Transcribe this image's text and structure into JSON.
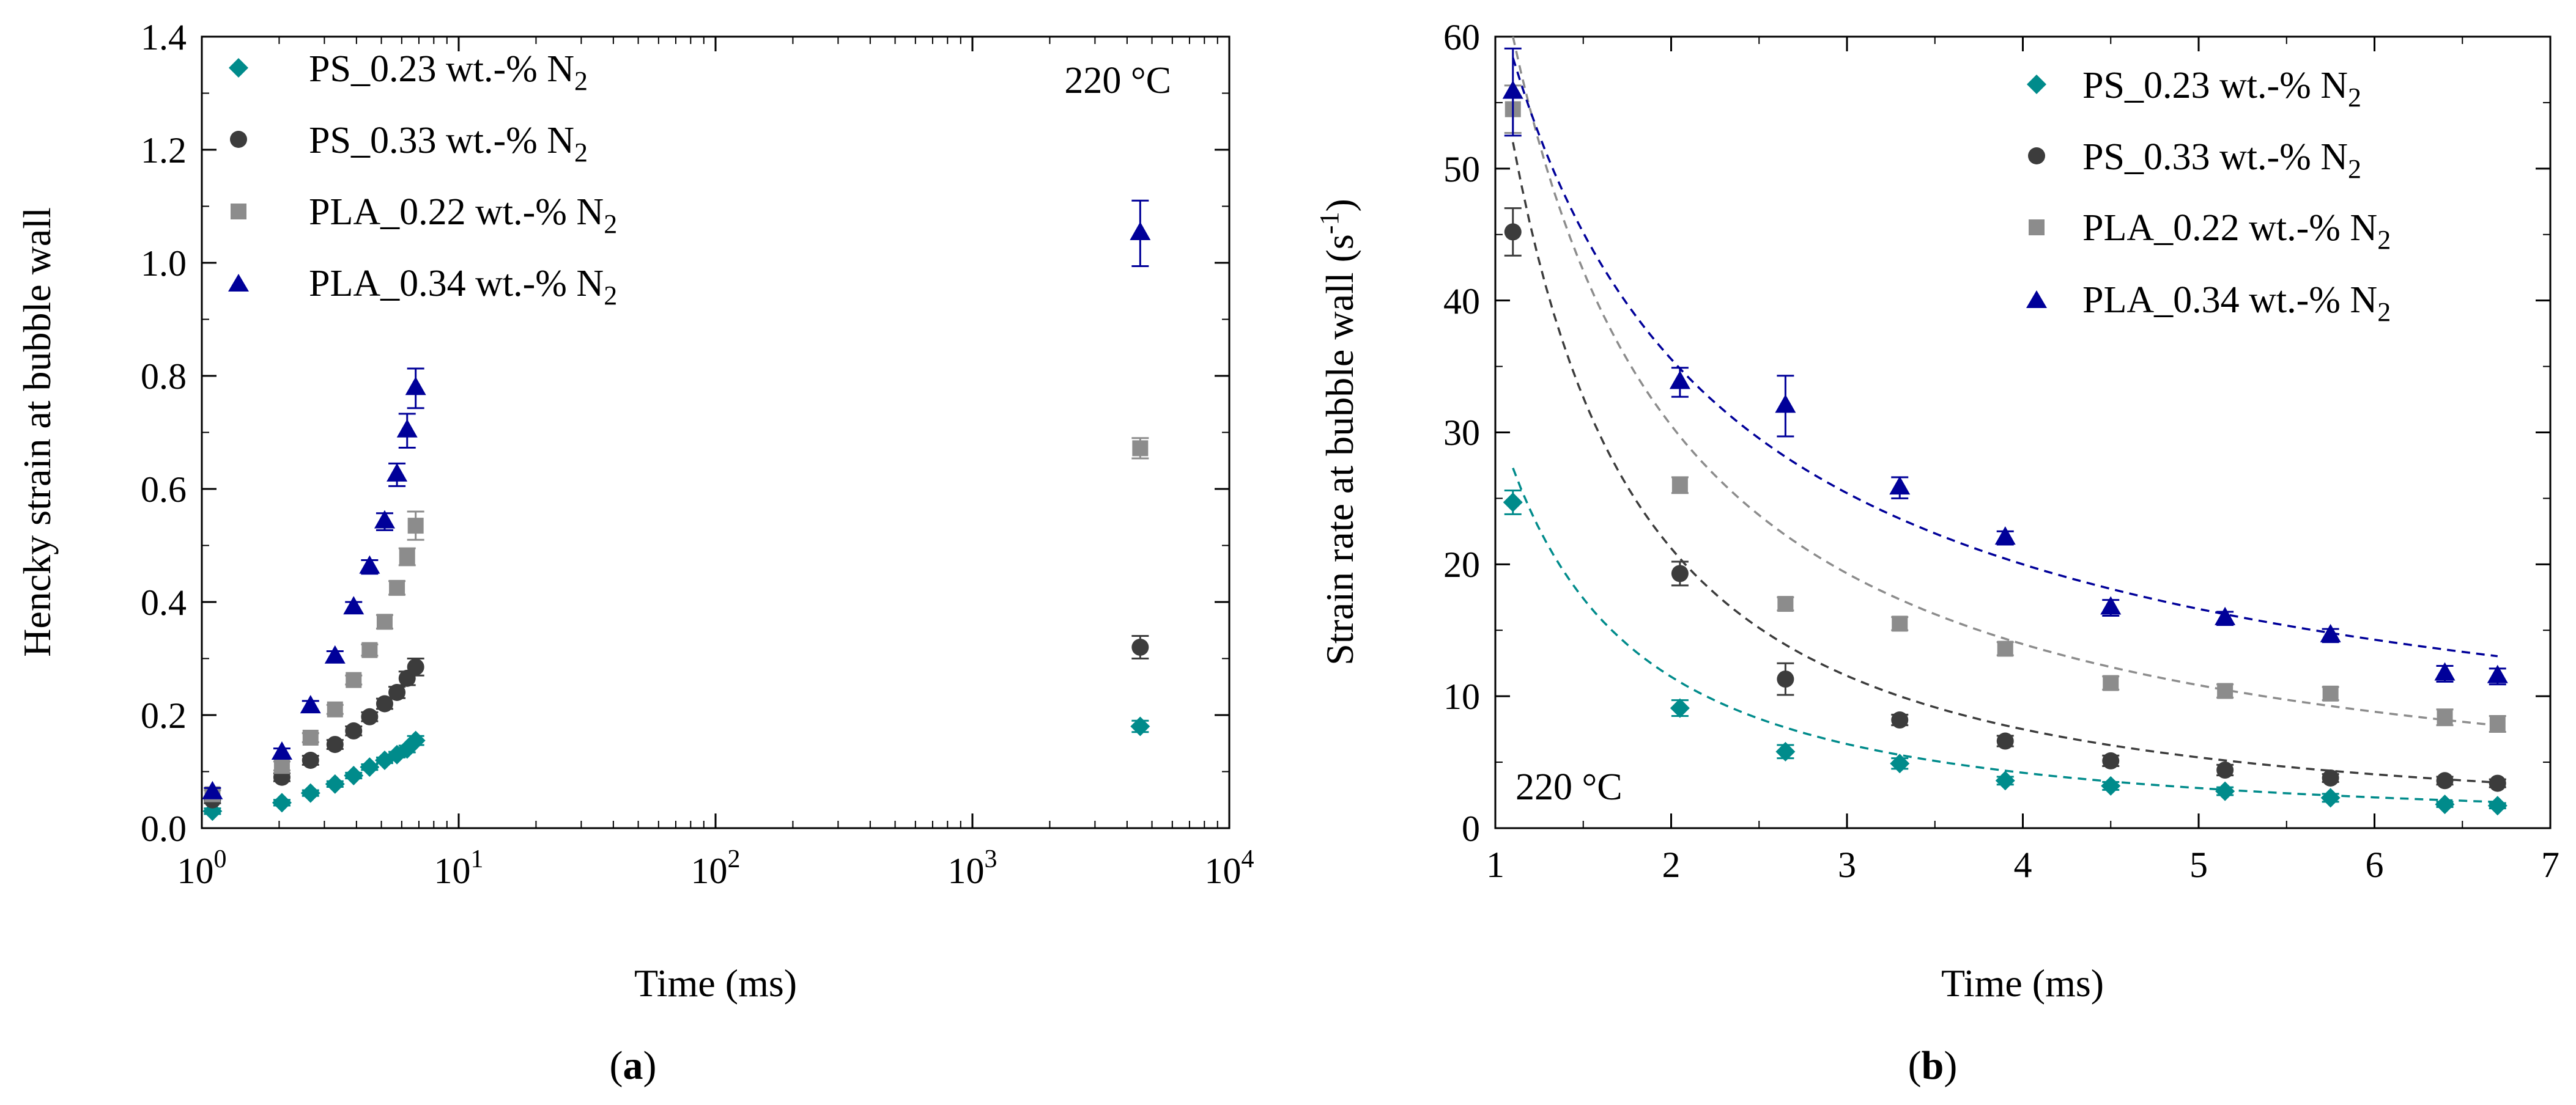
{
  "series_meta": [
    {
      "id": "ps023",
      "label": "PS_0.23 wt.-% N",
      "sub": "2",
      "color": "#008B8B",
      "marker": "diamond"
    },
    {
      "id": "ps033",
      "label": "PS_0.33 wt.-% N",
      "sub": "2",
      "color": "#3C3C3C",
      "marker": "circle"
    },
    {
      "id": "pla022",
      "label": "PLA_0.22 wt.-% N",
      "sub": "2",
      "color": "#8C8C8C",
      "marker": "square"
    },
    {
      "id": "pla034",
      "label": "PLA_0.34 wt.-% N",
      "sub": "2",
      "color": "#000099",
      "marker": "triangle"
    }
  ],
  "chart_data": [
    {
      "type": "scatter",
      "panel_label": "a",
      "xscale": "log",
      "xlim": [
        1,
        10000
      ],
      "ylim": [
        0,
        1.4
      ],
      "xlabel": "Time (ms)",
      "ylabel": "Hencky strain at bubble wall",
      "yticks": [
        "0.0",
        "0.2",
        "0.4",
        "0.6",
        "0.8",
        "1.0",
        "1.2",
        "1.4"
      ],
      "xticks": [
        {
          "base": "10",
          "exp": "0"
        },
        {
          "base": "10",
          "exp": "1"
        },
        {
          "base": "10",
          "exp": "2"
        },
        {
          "base": "10",
          "exp": "3"
        },
        {
          "base": "10",
          "exp": "4"
        }
      ],
      "annotation": "220 °C",
      "legend_position": "top-left",
      "series": [
        {
          "name": "PS_0.23 wt.-% N2",
          "x": [
            1.1,
            2.05,
            2.65,
            3.3,
            3.9,
            4.5,
            5.15,
            5.75,
            6.3,
            6.8,
            4500
          ],
          "y": [
            0.03,
            0.045,
            0.062,
            0.078,
            0.093,
            0.108,
            0.12,
            0.13,
            0.14,
            0.155,
            0.18
          ],
          "err": [
            0.005,
            0.005,
            0.005,
            0.005,
            0.005,
            0.005,
            0.005,
            0.005,
            0.006,
            0.008,
            0.01
          ]
        },
        {
          "name": "PS_0.33 wt.-% N2",
          "x": [
            1.1,
            2.05,
            2.65,
            3.3,
            3.9,
            4.5,
            5.15,
            5.75,
            6.3,
            6.8,
            4500
          ],
          "y": [
            0.05,
            0.09,
            0.12,
            0.148,
            0.172,
            0.197,
            0.22,
            0.24,
            0.265,
            0.285,
            0.32
          ],
          "err": [
            0.006,
            0.007,
            0.008,
            0.008,
            0.008,
            0.008,
            0.009,
            0.01,
            0.012,
            0.015,
            0.02
          ]
        },
        {
          "name": "PLA_0.22 wt.-% N2",
          "x": [
            1.1,
            2.05,
            2.65,
            3.3,
            3.9,
            4.5,
            5.15,
            5.75,
            6.3,
            6.8,
            4500
          ],
          "y": [
            0.06,
            0.11,
            0.16,
            0.21,
            0.262,
            0.315,
            0.365,
            0.425,
            0.48,
            0.535,
            0.672
          ],
          "err": [
            0.007,
            0.008,
            0.008,
            0.008,
            0.008,
            0.01,
            0.012,
            0.012,
            0.015,
            0.025,
            0.018
          ]
        },
        {
          "name": "PLA_0.34 wt.-% N2",
          "x": [
            1.1,
            2.05,
            2.65,
            3.3,
            3.9,
            4.5,
            5.15,
            5.75,
            6.3,
            6.8,
            4500
          ],
          "y": [
            0.063,
            0.133,
            0.215,
            0.303,
            0.39,
            0.462,
            0.542,
            0.625,
            0.703,
            0.778,
            1.052
          ],
          "err": [
            0.008,
            0.008,
            0.01,
            0.01,
            0.01,
            0.012,
            0.015,
            0.02,
            0.03,
            0.035,
            0.058
          ]
        }
      ]
    },
    {
      "type": "scatter",
      "panel_label": "b",
      "xscale": "linear",
      "xlim": [
        1,
        7
      ],
      "ylim": [
        0,
        60
      ],
      "xlabel": "Time (ms)",
      "ylabel": "Strain rate at bubble wall (s",
      "ylabel_sup": "-1",
      "ylabel_end": ")",
      "yticks": [
        "0",
        "10",
        "20",
        "30",
        "40",
        "50",
        "60"
      ],
      "xticks": [
        "1",
        "2",
        "3",
        "4",
        "5",
        "6",
        "7"
      ],
      "annotation": "220 °C",
      "legend_position": "top-right",
      "fit": "dashed power-law decay",
      "series": [
        {
          "name": "PS_0.23 wt.-% N2",
          "x": [
            1.1,
            2.05,
            2.65,
            3.3,
            3.9,
            4.5,
            5.15,
            5.75,
            6.4,
            6.7
          ],
          "y": [
            24.7,
            9.1,
            5.8,
            4.9,
            3.6,
            3.2,
            2.8,
            2.3,
            1.8,
            1.7
          ],
          "err": [
            0.9,
            0.6,
            0.5,
            0.4,
            0.3,
            0.3,
            0.3,
            0.3,
            0.2,
            0.2
          ],
          "fit": {
            "a": 27.3,
            "b": 1.45
          }
        },
        {
          "name": "PS_0.33 wt.-% N2",
          "x": [
            1.1,
            2.05,
            2.65,
            3.3,
            3.9,
            4.5,
            5.15,
            5.75,
            6.4,
            6.7
          ],
          "y": [
            45.2,
            19.3,
            11.3,
            8.2,
            6.6,
            5.1,
            4.4,
            3.8,
            3.6,
            3.4
          ],
          "err": [
            1.8,
            0.9,
            1.2,
            0.4,
            0.4,
            0.4,
            0.4,
            0.3,
            0.3,
            0.3
          ],
          "fit": {
            "a": 52.0,
            "b": 1.5
          }
        },
        {
          "name": "PLA_0.22 wt.-% N2",
          "x": [
            1.1,
            2.05,
            2.65,
            3.3,
            3.9,
            4.5,
            5.15,
            5.75,
            6.4,
            6.7
          ],
          "y": [
            54.5,
            26.0,
            17.0,
            15.5,
            13.6,
            11.0,
            10.4,
            10.2,
            8.4,
            7.9
          ],
          "err": [
            1.8,
            0.6,
            0.5,
            0.5,
            0.5,
            0.5,
            0.5,
            0.5,
            0.6,
            0.6
          ],
          "fit": {
            "a": 60.0,
            "b": 1.13
          }
        },
        {
          "name": "PLA_0.34 wt.-% N2",
          "x": [
            1.1,
            2.05,
            2.65,
            3.3,
            3.9,
            4.5,
            5.15,
            5.75,
            6.4,
            6.7
          ],
          "y": [
            55.8,
            33.8,
            32.0,
            25.8,
            22.0,
            16.7,
            15.9,
            14.6,
            11.7,
            11.5
          ],
          "err": [
            3.3,
            1.1,
            2.3,
            0.8,
            0.5,
            0.6,
            0.5,
            0.5,
            0.6,
            0.6
          ],
          "fit": {
            "a": 58.4,
            "b": 0.83
          }
        }
      ]
    }
  ]
}
